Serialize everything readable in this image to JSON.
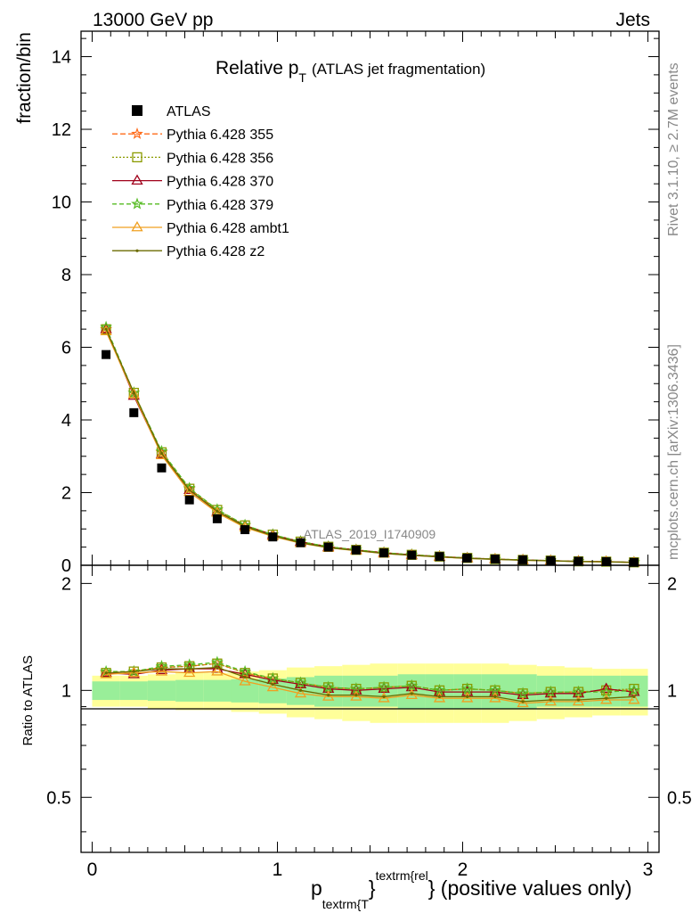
{
  "header": {
    "energy_label": "13000 GeV pp",
    "process_label": "Jets"
  },
  "side_text": {
    "rivet": "Rivet 3.1.10, ≥ 2.7M events",
    "mcplots": "mcplots.cern.ch [arXiv:1306.3436]"
  },
  "chart_data": {
    "type": "line",
    "title_main": "Relative p",
    "title_sub": "T",
    "title_rest": "(ATLAS jet fragmentation)",
    "watermark": "ATLAS_2019_I1740909",
    "xlabel_p": "p",
    "xlabel_sub": "textrm{T",
    "xlabel_brace": "}",
    "xlabel_sup": "textrm{rel",
    "xlabel_rest": "} (positive values only)",
    "ylabel_top": "fraction/bin",
    "ylabel_bottom": "Ratio to ATLAS",
    "xlim": [
      -0.06,
      3.06
    ],
    "ylim_top": [
      0,
      14.7
    ],
    "ylim_bottom": [
      0.35,
      2.25
    ],
    "x_ticks": [
      {
        "v": 0,
        "l": "0"
      },
      {
        "v": 1,
        "l": "1"
      },
      {
        "v": 2,
        "l": "2"
      },
      {
        "v": 3,
        "l": "3"
      }
    ],
    "y_ticks_top": [
      {
        "v": 0,
        "l": "0"
      },
      {
        "v": 2,
        "l": "2"
      },
      {
        "v": 4,
        "l": "4"
      },
      {
        "v": 6,
        "l": "6"
      },
      {
        "v": 8,
        "l": "8"
      },
      {
        "v": 10,
        "l": "10"
      },
      {
        "v": 12,
        "l": "12"
      },
      {
        "v": 14,
        "l": "14"
      }
    ],
    "y_ticks_bottom": [
      {
        "v": 0.5,
        "l": "0.5"
      },
      {
        "v": 1,
        "l": "1"
      },
      {
        "v": 2,
        "l": "2"
      }
    ],
    "x": [
      0.075,
      0.225,
      0.375,
      0.525,
      0.675,
      0.825,
      0.975,
      1.125,
      1.275,
      1.425,
      1.575,
      1.725,
      1.875,
      2.025,
      2.175,
      2.325,
      2.475,
      2.625,
      2.775,
      2.925
    ],
    "bin_edges": [
      0.0,
      0.15,
      0.3,
      0.45,
      0.6,
      0.75,
      0.9,
      1.05,
      1.2,
      1.35,
      1.5,
      1.65,
      1.8,
      1.95,
      2.1,
      2.25,
      2.4,
      2.55,
      2.7,
      2.85,
      3.0
    ],
    "data": {
      "name": "ATLAS",
      "values": [
        5.8,
        4.2,
        2.68,
        1.8,
        1.28,
        0.98,
        0.78,
        0.62,
        0.5,
        0.42,
        0.34,
        0.28,
        0.24,
        0.2,
        0.17,
        0.15,
        0.13,
        0.11,
        0.1,
        0.08
      ]
    },
    "band_green": [
      0.06,
      0.06,
      0.065,
      0.07,
      0.07,
      0.075,
      0.08,
      0.09,
      0.1,
      0.1,
      0.1,
      0.11,
      0.11,
      0.11,
      0.11,
      0.11,
      0.1,
      0.1,
      0.1,
      0.1
    ],
    "band_yellow": [
      0.1,
      0.1,
      0.11,
      0.12,
      0.12,
      0.13,
      0.14,
      0.16,
      0.17,
      0.18,
      0.19,
      0.19,
      0.19,
      0.19,
      0.19,
      0.18,
      0.17,
      0.16,
      0.15,
      0.15
    ],
    "series": [
      {
        "name": "Pythia 6.428 355",
        "color": "#ff6b1a",
        "dash": "6,3",
        "marker": "star",
        "ratio": [
          1.12,
          1.13,
          1.16,
          1.17,
          1.19,
          1.12,
          1.08,
          1.05,
          1.02,
          1.01,
          1.02,
          1.03,
          1.0,
          1.01,
          1.0,
          0.98,
          0.99,
          0.99,
          1.0,
          1.0
        ]
      },
      {
        "name": "Pythia 6.428 356",
        "color": "#8a9a00",
        "dash": "2,2",
        "marker": "square",
        "ratio": [
          1.12,
          1.13,
          1.16,
          1.17,
          1.19,
          1.12,
          1.08,
          1.05,
          1.02,
          1.01,
          1.02,
          1.03,
          1.0,
          1.01,
          1.0,
          0.98,
          0.99,
          0.99,
          1.0,
          1.01
        ]
      },
      {
        "name": "Pythia 6.428 370",
        "color": "#a0001a",
        "dash": "",
        "marker": "triangle",
        "ratio": [
          1.12,
          1.11,
          1.14,
          1.15,
          1.15,
          1.11,
          1.07,
          1.04,
          1.01,
          1.0,
          1.01,
          1.02,
          0.99,
          0.99,
          0.99,
          0.97,
          0.98,
          0.98,
          1.01,
          0.99
        ]
      },
      {
        "name": "Pythia 6.428 379",
        "color": "#55bb22",
        "dash": "5,3",
        "marker": "star",
        "ratio": [
          1.13,
          1.13,
          1.17,
          1.18,
          1.2,
          1.13,
          1.08,
          1.05,
          1.02,
          1.01,
          1.02,
          1.03,
          1.0,
          1.01,
          1.0,
          0.98,
          0.99,
          0.99,
          0.99,
          1.0
        ]
      },
      {
        "name": "Pythia 6.428 ambt1",
        "color": "#f0a020",
        "dash": "",
        "marker": "triangle",
        "ratio": [
          1.11,
          1.12,
          1.13,
          1.12,
          1.13,
          1.06,
          1.02,
          0.98,
          0.96,
          0.96,
          0.95,
          0.97,
          0.95,
          0.95,
          0.95,
          0.92,
          0.93,
          0.93,
          0.94,
          0.94
        ]
      },
      {
        "name": "Pythia 6.428 z2",
        "color": "#6b6b00",
        "dash": "",
        "marker": "dot",
        "ratio": [
          1.12,
          1.13,
          1.15,
          1.15,
          1.16,
          1.09,
          1.04,
          1.0,
          0.97,
          0.97,
          0.96,
          0.98,
          0.96,
          0.96,
          0.96,
          0.93,
          0.94,
          0.94,
          0.95,
          0.96
        ]
      }
    ]
  }
}
